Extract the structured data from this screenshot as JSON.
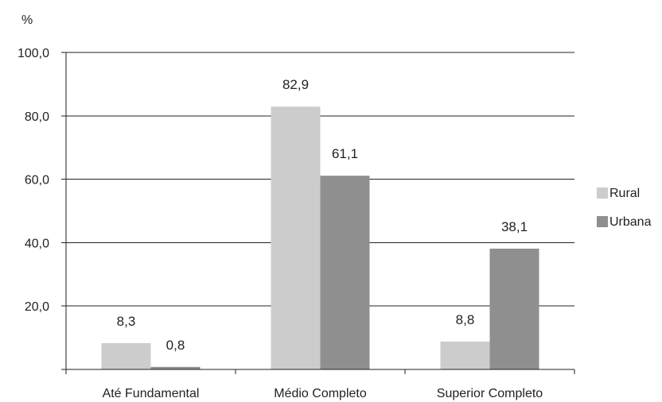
{
  "chart_data": {
    "type": "bar",
    "unit_label": "%",
    "categories": [
      "Até Fundamental",
      "Médio Completo",
      "Superior Completo"
    ],
    "series": [
      {
        "name": "Rural",
        "values": [
          8.3,
          82.9,
          8.8
        ],
        "labels": [
          "8,3",
          "82,9",
          "8,8"
        ],
        "color": "#cccccc"
      },
      {
        "name": "Urbana",
        "values": [
          0.8,
          61.1,
          38.1
        ],
        "labels": [
          "0,8",
          "61,1",
          "38,1"
        ],
        "color": "#8f8f8f"
      }
    ],
    "y_ticks": [
      {
        "value": 20,
        "label": "20,0"
      },
      {
        "value": 40,
        "label": "40,0"
      },
      {
        "value": 60,
        "label": "60,0"
      },
      {
        "value": 80,
        "label": "80,0"
      },
      {
        "value": 100,
        "label": "100,0"
      }
    ],
    "ylim": [
      0,
      100
    ],
    "grid": true,
    "legend_position": "right"
  }
}
